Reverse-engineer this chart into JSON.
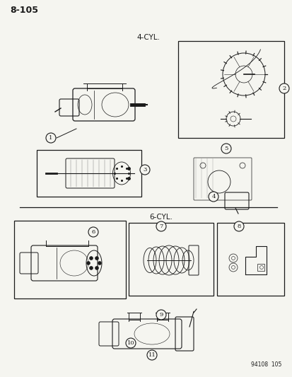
{
  "page_number": "8-105",
  "catalog_number": "94108  105",
  "background_color": "#f5f5f0",
  "label_4cyl": "4-CYL.",
  "label_6cyl": "6-CYL.",
  "part_numbers": [
    1,
    2,
    3,
    4,
    5,
    6,
    7,
    8,
    9,
    10,
    11
  ],
  "line_color": "#1a1a1a",
  "fig_width": 4.14,
  "fig_height": 5.33,
  "dpi": 100
}
